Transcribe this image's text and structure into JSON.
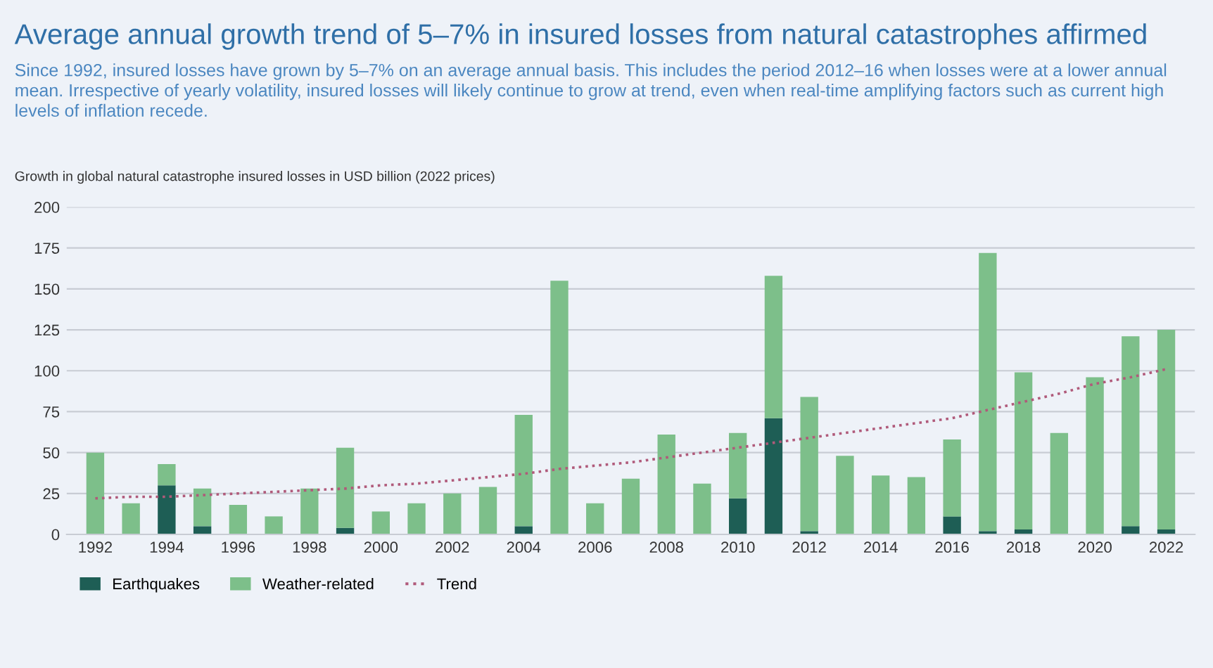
{
  "chart_data": {
    "type": "bar",
    "stacked": true,
    "title": "Average annual growth trend of 5–7% in insured losses from natural catastrophes affirmed",
    "subtitle": "Since 1992, insured losses have grown by 5–7% on an average annual basis. This includes the period 2012–16 when losses were at a lower annual mean. Irrespective of yearly volatility, insured losses will likely continue to grow at trend, even when real-time amplifying factors such as current high levels of inflation recede.",
    "ylabel": "Growth in global natural catastrophe insured losses in USD billion (2022 prices)",
    "categories": [
      "1992",
      null,
      "1994",
      null,
      "1996",
      null,
      "1998",
      null,
      "2000",
      null,
      "2002",
      null,
      "2004",
      null,
      "2006",
      null,
      "2008",
      null,
      "2010",
      null,
      "2012",
      null,
      "2014",
      null,
      "2016",
      null,
      "2018",
      null,
      "2020",
      null,
      "2022"
    ],
    "series": [
      {
        "name": "Earthquakes",
        "color": "#1e5e55",
        "values": [
          0,
          0,
          30,
          5,
          0,
          0,
          0,
          4,
          0,
          0,
          0,
          0,
          5,
          0,
          0,
          0,
          0,
          0,
          22,
          71,
          2,
          0,
          0,
          0,
          11,
          2,
          3,
          0,
          0,
          5,
          3
        ]
      },
      {
        "name": "Weather-related",
        "color": "#7dbf8a",
        "values": [
          50,
          19,
          13,
          23,
          18,
          11,
          28,
          49,
          14,
          19,
          25,
          29,
          68,
          155,
          19,
          34,
          61,
          31,
          40,
          87,
          82,
          48,
          36,
          35,
          47,
          170,
          96,
          62,
          96,
          116,
          122
        ]
      },
      {
        "name": "Trend",
        "type": "line",
        "color": "#b05a7a",
        "line_style": "dotted",
        "values": [
          22,
          23,
          23,
          24,
          25,
          26,
          27,
          28,
          30,
          31,
          33,
          35,
          37,
          40,
          42,
          44,
          47,
          50,
          53,
          56,
          59,
          62,
          65,
          68,
          71,
          76,
          81,
          86,
          92,
          96,
          101
        ]
      }
    ],
    "ylim": [
      0,
      200
    ],
    "yticks": [
      0,
      25,
      50,
      75,
      100,
      125,
      150,
      175,
      200
    ],
    "grid": "y",
    "legend": "bottom left"
  }
}
